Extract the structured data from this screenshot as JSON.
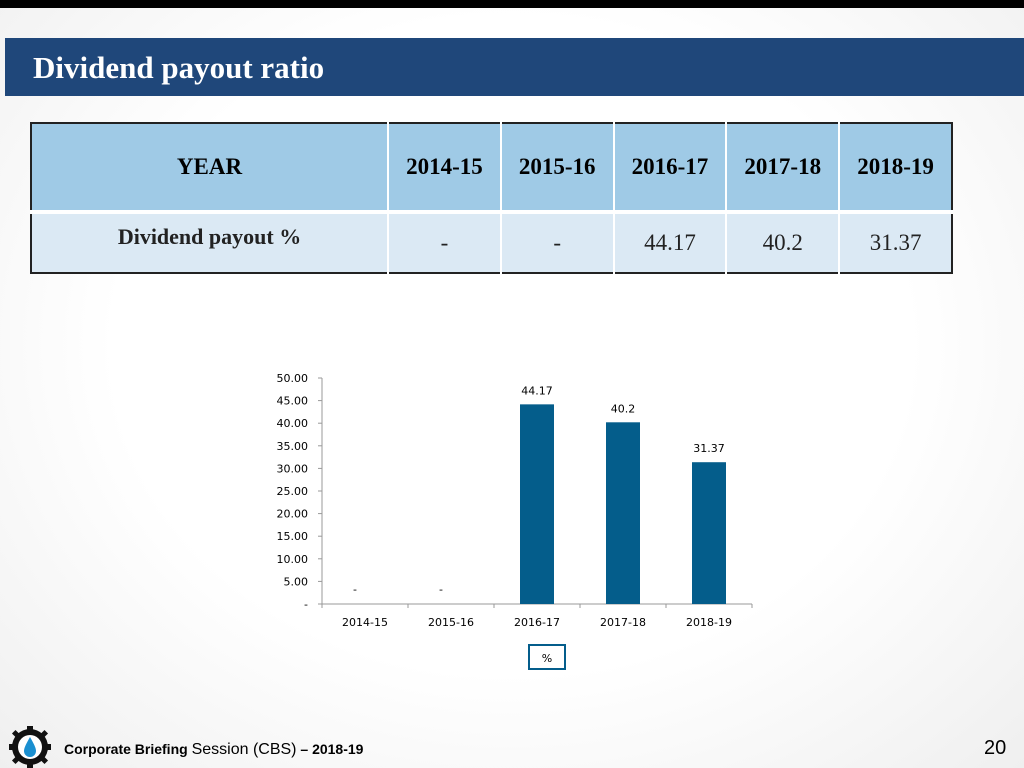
{
  "title": "Dividend payout ratio",
  "table": {
    "header_label": "YEAR",
    "years": [
      "2014-15",
      "2015-16",
      "2016-17",
      "2017-18",
      "2018-19"
    ],
    "row_label": "Dividend payout %",
    "values": [
      "-",
      "-",
      "44.17",
      "40.2",
      "31.37"
    ]
  },
  "chart_data": {
    "type": "bar",
    "categories": [
      "2014-15",
      "2015-16",
      "2016-17",
      "2017-18",
      "2018-19"
    ],
    "values": [
      0,
      0,
      44.17,
      40.2,
      31.37
    ],
    "data_labels": [
      "-",
      "-",
      "44.17",
      "40.2",
      "31.37"
    ],
    "ylim": [
      0,
      50
    ],
    "yticks": [
      "-",
      "5.00",
      "10.00",
      "15.00",
      "20.00",
      "25.00",
      "30.00",
      "35.00",
      "40.00",
      "45.00",
      "50.00"
    ],
    "legend": "%",
    "legend_position": "bottom",
    "grid": false,
    "bar_color": "#045d8b"
  },
  "footer": {
    "text_a": "Corporate Briefing ",
    "text_b": "Session (CBS)",
    "text_c": " – 2018-19",
    "page_number": "20"
  },
  "colors": {
    "title_bar": "#1f477a",
    "table_header": "#9fcae6",
    "table_row": "#dbe9f4"
  }
}
